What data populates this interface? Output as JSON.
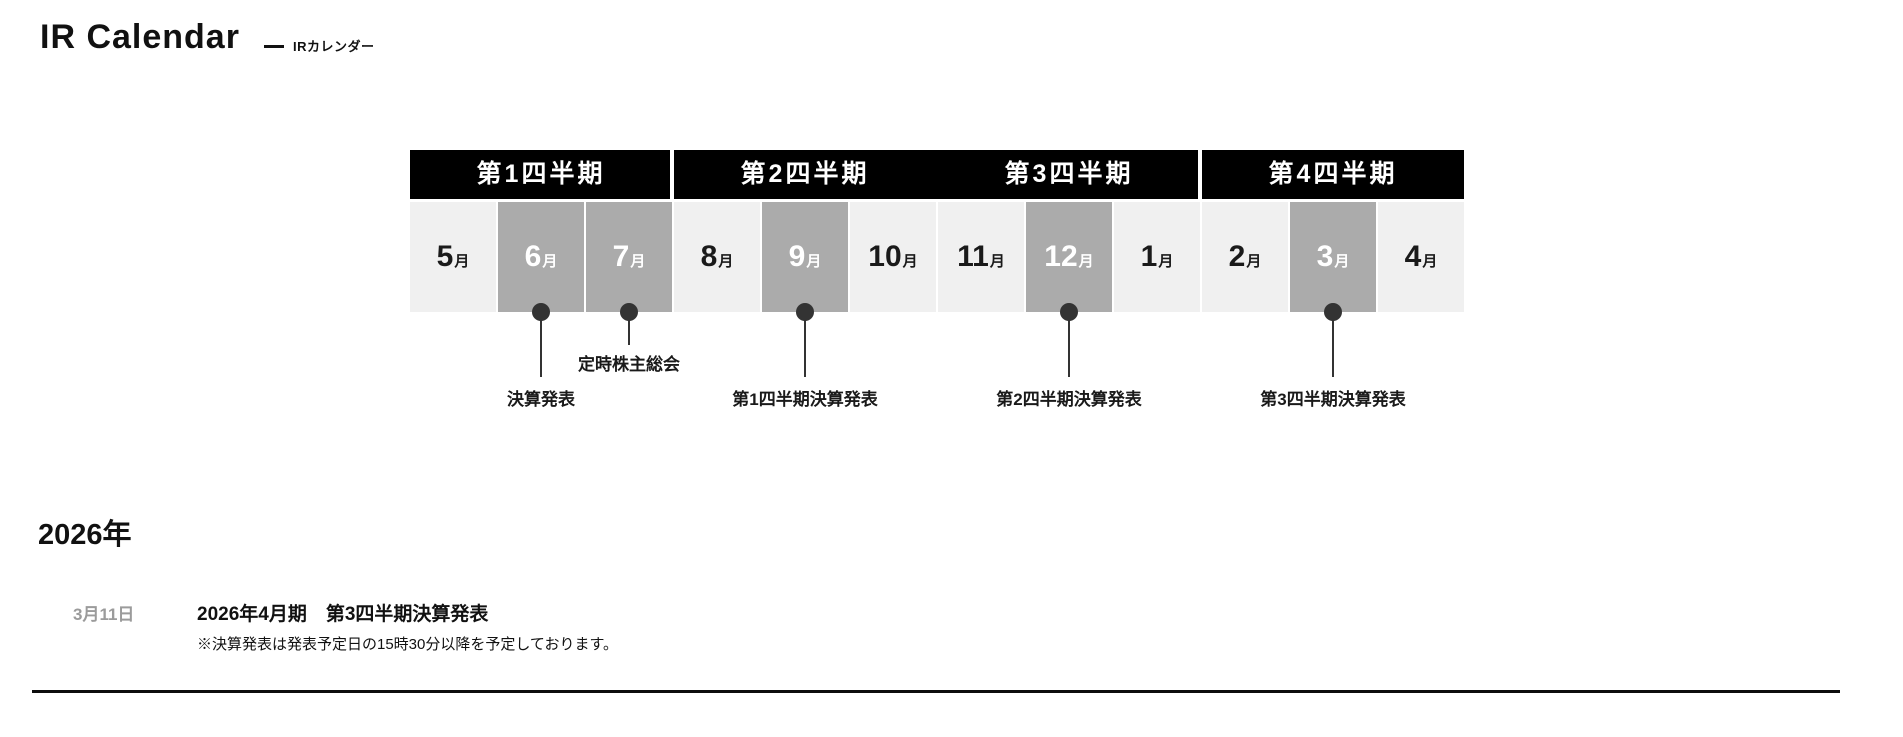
{
  "page": {
    "title": "IR Calendar",
    "subtitle": "IRカレンダー"
  },
  "calendar": {
    "quarters": [
      {
        "label": "第1四半期"
      },
      {
        "label": "第2四半期"
      },
      {
        "label": "第3四半期"
      },
      {
        "label": "第4四半期"
      }
    ],
    "months": [
      {
        "num": "5",
        "suffix": "月",
        "highlighted": false
      },
      {
        "num": "6",
        "suffix": "月",
        "highlighted": true
      },
      {
        "num": "7",
        "suffix": "月",
        "highlighted": true
      },
      {
        "num": "8",
        "suffix": "月",
        "highlighted": false
      },
      {
        "num": "9",
        "suffix": "月",
        "highlighted": true
      },
      {
        "num": "10",
        "suffix": "月",
        "highlighted": false
      },
      {
        "num": "11",
        "suffix": "月",
        "highlighted": false
      },
      {
        "num": "12",
        "suffix": "月",
        "highlighted": true
      },
      {
        "num": "1",
        "suffix": "月",
        "highlighted": false
      },
      {
        "num": "2",
        "suffix": "月",
        "highlighted": false
      },
      {
        "num": "3",
        "suffix": "月",
        "highlighted": true
      },
      {
        "num": "4",
        "suffix": "月",
        "highlighted": false
      }
    ],
    "events": [
      {
        "label": "決算発表",
        "month": "6月",
        "stem": "long"
      },
      {
        "label": "定時株主総会",
        "month": "7月",
        "stem": "short"
      },
      {
        "label": "第1四半期決算発表",
        "month": "9月",
        "stem": "long"
      },
      {
        "label": "第2四半期決算発表",
        "month": "12月",
        "stem": "long"
      },
      {
        "label": "第3四半期決算発表",
        "month": "3月",
        "stem": "long"
      }
    ],
    "colors": {
      "band_bg": "#000000",
      "cell_bg": "#f0f0f0",
      "cell_highlight_bg": "#ababab",
      "marker_dot": "#333333"
    }
  },
  "schedule": {
    "year_heading": "2026年",
    "entries": [
      {
        "date": "3月11日",
        "title": "2026年4月期　第3四半期決算発表",
        "note": "※決算発表は発表予定日の15時30分以降を予定しております。"
      }
    ]
  }
}
